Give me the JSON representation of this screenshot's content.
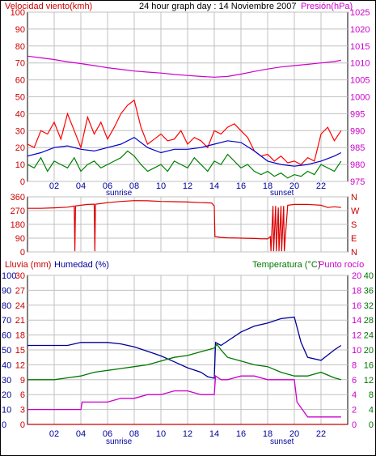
{
  "header": {
    "wind_label": "Velocidad viento(kmh)",
    "title": "24 hour graph day : 14 Noviembre 2007",
    "pressure_label": "Presión(hPa)"
  },
  "colors": {
    "border": "#000000",
    "grid": "#c0c0c0",
    "plot_bg": "#ffffff",
    "wind": "#ff0000",
    "wind_avg": "#0000cc",
    "gust_low": "#008000",
    "pressure": "#cc00cc",
    "direction": "#dd0000",
    "rain": "#cc0000",
    "humidity": "#000099",
    "temperature": "#007700",
    "dewpoint": "#cc00cc",
    "axis_red": "#cc0000",
    "axis_magenta": "#cc00cc",
    "axis_blue": "#000099",
    "axis_green": "#007700"
  },
  "chart_data": [
    {
      "type": "line",
      "name": "wind",
      "title": "24 hour graph day : 14 Noviembre 2007",
      "ylabel": "Velocidad viento(kmh)",
      "y2label": "Presión(hPa)",
      "ylim": [
        0,
        100
      ],
      "y2lim": [
        975,
        1025
      ],
      "yticks": [
        "0",
        "10",
        "20",
        "30",
        "40",
        "50",
        "60",
        "70",
        "80",
        "90",
        "100"
      ],
      "y2ticks": [
        "975",
        "980",
        "985",
        "990",
        "995",
        "1000",
        "1005",
        "1010",
        "1015",
        "1020",
        "1025"
      ],
      "xticks": [
        "02",
        "04",
        "06",
        "08",
        "10",
        "12",
        "14",
        "16",
        "18",
        "20",
        "22"
      ],
      "annotations": [
        "sunrise",
        "sunset"
      ],
      "series": [
        {
          "label": "wind-speed",
          "x": [
            0,
            0.5,
            1,
            1.5,
            2,
            2.5,
            3,
            3.5,
            4,
            4.5,
            5,
            5.5,
            6,
            6.5,
            7,
            7.5,
            8,
            8.5,
            9,
            9.5,
            10,
            10.5,
            11,
            11.5,
            12,
            12.5,
            13,
            13.5,
            14,
            14.5,
            15,
            15.5,
            16,
            16.5,
            17,
            17.5,
            18,
            18.5,
            19,
            19.5,
            20,
            20.5,
            21,
            21.5,
            22,
            22.5,
            23,
            23.5
          ],
          "y": [
            22,
            20,
            30,
            28,
            35,
            25,
            40,
            30,
            20,
            38,
            28,
            35,
            25,
            32,
            40,
            45,
            48,
            32,
            22,
            25,
            28,
            24,
            25,
            30,
            22,
            26,
            24,
            20,
            30,
            28,
            32,
            34,
            30,
            26,
            18,
            15,
            16,
            12,
            15,
            11,
            12,
            10,
            14,
            12,
            28,
            32,
            24,
            30
          ]
        },
        {
          "label": "wind-average",
          "x": [
            0,
            1,
            2,
            3,
            4,
            5,
            6,
            7,
            8,
            9,
            10,
            11,
            12,
            13,
            14,
            15,
            16,
            17,
            18,
            19,
            20,
            21,
            22,
            23,
            23.5
          ],
          "y": [
            15,
            17,
            20,
            21,
            19,
            18,
            20,
            22,
            26,
            20,
            17,
            19,
            19,
            20,
            22,
            24,
            23,
            18,
            12,
            10,
            9,
            10,
            12,
            15,
            17
          ]
        },
        {
          "label": "wind-low",
          "x": [
            0,
            0.5,
            1,
            1.5,
            2,
            2.5,
            3,
            3.5,
            4,
            4.5,
            5,
            5.5,
            6,
            6.5,
            7,
            7.5,
            8,
            8.5,
            9,
            9.5,
            10,
            10.5,
            11,
            11.5,
            12,
            12.5,
            13,
            13.5,
            14,
            14.5,
            15,
            15.5,
            16,
            16.5,
            17,
            17.5,
            18,
            18.5,
            19,
            19.5,
            20,
            20.5,
            21,
            21.5,
            22,
            22.5,
            23,
            23.5
          ],
          "y": [
            10,
            8,
            14,
            6,
            12,
            10,
            8,
            14,
            6,
            10,
            12,
            8,
            10,
            12,
            14,
            18,
            15,
            10,
            6,
            8,
            10,
            6,
            12,
            10,
            8,
            14,
            10,
            6,
            12,
            10,
            16,
            12,
            8,
            10,
            6,
            4,
            6,
            3,
            5,
            2,
            4,
            3,
            6,
            4,
            10,
            8,
            6,
            12
          ]
        },
        {
          "label": "pressure",
          "axis": "y2",
          "x": [
            0,
            1,
            2,
            3,
            4,
            5,
            6,
            7,
            8,
            9,
            10,
            11,
            12,
            13,
            14,
            15,
            16,
            17,
            18,
            19,
            20,
            21,
            22,
            23,
            23.5
          ],
          "y": [
            1012,
            1011.5,
            1011,
            1010.3,
            1009.8,
            1009.2,
            1008.6,
            1008.1,
            1007.6,
            1007.3,
            1007,
            1006.6,
            1006.3,
            1006,
            1005.8,
            1006,
            1006.7,
            1007.5,
            1008.2,
            1008.8,
            1009.2,
            1009.6,
            1010,
            1010.4,
            1010.8
          ]
        }
      ]
    },
    {
      "type": "line",
      "name": "wind-direction",
      "ylim": [
        0,
        360
      ],
      "yticks": [
        "0",
        "90",
        "180",
        "270",
        "360"
      ],
      "y2ticks": [
        "N",
        "E",
        "S",
        "W",
        "N"
      ],
      "series": [
        {
          "label": "direction",
          "x": [
            0,
            1,
            2,
            3,
            3.5,
            3.55,
            3.6,
            4,
            4.5,
            5,
            5.05,
            5.1,
            6,
            7,
            8,
            9,
            10,
            11,
            12,
            13,
            13.8,
            14,
            14.05,
            14.5,
            15,
            16,
            17,
            17.5,
            18,
            18.2,
            18.25,
            18.4,
            18.45,
            18.6,
            18.65,
            18.8,
            18.85,
            19,
            19.05,
            19.2,
            19.25,
            19.5,
            20,
            21,
            22,
            22.5,
            23,
            23.5
          ],
          "y": [
            285,
            285,
            288,
            292,
            300,
            5,
            300,
            305,
            310,
            312,
            5,
            312,
            322,
            330,
            335,
            334,
            330,
            328,
            326,
            322,
            320,
            300,
            100,
            95,
            92,
            90,
            88,
            86,
            85,
            100,
            5,
            300,
            5,
            300,
            5,
            290,
            5,
            300,
            5,
            300,
            5,
            305,
            310,
            310,
            305,
            290,
            295,
            290
          ]
        }
      ]
    },
    {
      "type": "line",
      "name": "humidity-temperature",
      "y_left_rain_ticks": [
        "0",
        "3",
        "6",
        "9",
        "12",
        "15",
        "18",
        "21",
        "24",
        "27",
        "30"
      ],
      "y_left_humidity_ticks": [
        "0",
        "10",
        "20",
        "30",
        "40",
        "50",
        "60",
        "70",
        "80",
        "90",
        "100"
      ],
      "y_right_temp_ticks": [
        "0",
        "4",
        "8",
        "12",
        "16",
        "20",
        "24",
        "28",
        "32",
        "36",
        "40"
      ],
      "y_right_dew_ticks": [
        "0",
        "2",
        "4",
        "6",
        "8",
        "10",
        "12",
        "14",
        "16",
        "18",
        "20"
      ],
      "legend": [
        "Lluvia (mm)",
        "Humedad (%)",
        "Temperatura (°C)",
        "Punto rocío"
      ],
      "xticks": [
        "02",
        "04",
        "06",
        "08",
        "10",
        "12",
        "14",
        "16",
        "18",
        "20",
        "22"
      ],
      "annotations": [
        "sunrise",
        "sunset"
      ],
      "series": [
        {
          "label": "Lluvia (mm)",
          "x": [
            0,
            24
          ],
          "y": [
            0,
            0
          ]
        },
        {
          "label": "Humedad (%)",
          "x": [
            0,
            1,
            2,
            3,
            4,
            5,
            6,
            7,
            8,
            9,
            10,
            11,
            12,
            13,
            13.5,
            14,
            14.1,
            14.5,
            15,
            16,
            17,
            18,
            19,
            20,
            20.5,
            21,
            22,
            23,
            23.5
          ],
          "y": [
            53,
            53,
            53,
            53,
            55,
            55,
            55,
            54,
            52,
            49,
            46,
            42,
            38,
            35,
            32,
            31,
            55,
            53,
            56,
            62,
            66,
            68,
            71,
            72,
            55,
            45,
            43,
            50,
            53
          ]
        },
        {
          "label": "Temperatura (°C)",
          "x": [
            0,
            1,
            2,
            3,
            4,
            5,
            6,
            7,
            8,
            9,
            10,
            11,
            12,
            13,
            14,
            14.2,
            14.5,
            15,
            16,
            17,
            18,
            19,
            20,
            21,
            22,
            23,
            23.5
          ],
          "y": [
            12,
            12,
            12,
            12.5,
            13,
            14,
            14.5,
            15,
            15.5,
            16,
            17,
            18,
            18.5,
            19.5,
            20.5,
            21.5,
            20,
            18,
            17,
            16,
            15.5,
            14,
            13,
            13,
            14,
            12.5,
            12
          ]
        },
        {
          "label": "Punto rocío",
          "x": [
            0,
            1,
            2,
            3,
            4,
            4.1,
            5,
            6,
            7,
            8,
            9,
            10,
            11,
            12,
            13,
            14,
            14.1,
            14.5,
            15,
            16,
            17,
            18,
            19,
            20,
            20.2,
            21,
            22,
            23,
            23.5
          ],
          "y": [
            2,
            2,
            2,
            2,
            2,
            3,
            3,
            3,
            3.5,
            3.5,
            4,
            4,
            4.5,
            4.5,
            4,
            4,
            6.5,
            6,
            6,
            6.5,
            6.5,
            6,
            6,
            6,
            3,
            1,
            1,
            1,
            1
          ]
        }
      ]
    }
  ]
}
